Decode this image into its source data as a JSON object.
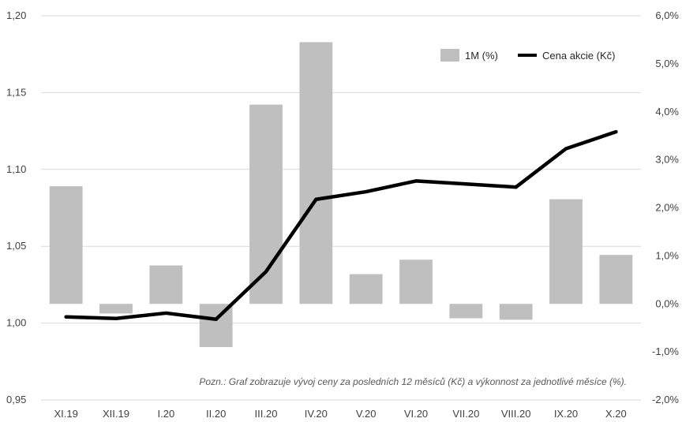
{
  "chart_data": {
    "type": "bar",
    "categories": [
      "XI.19",
      "XII.19",
      "I.20",
      "II.20",
      "III.20",
      "IV.20",
      "V.20",
      "VI.20",
      "VII.20",
      "VIII.20",
      "IX.20",
      "X.20"
    ],
    "series": [
      {
        "name": "1M (%)",
        "type": "bar",
        "axis": "right",
        "color": "#bfbfbf",
        "values": [
          2.45,
          -0.2,
          0.8,
          -0.9,
          4.15,
          5.45,
          0.62,
          0.92,
          -0.3,
          -0.33,
          2.18,
          1.02
        ]
      },
      {
        "name": "Cena akcie (Kč)",
        "type": "line",
        "axis": "left",
        "color": "#000000",
        "values": [
          1.004,
          1.003,
          1.0065,
          1.0025,
          1.0335,
          1.0805,
          1.0855,
          1.0925,
          1.0905,
          1.0885,
          1.1135,
          1.1245
        ]
      }
    ],
    "y_left": {
      "min": 0.95,
      "max": 1.2,
      "ticks": [
        "0,95",
        "1,00",
        "1,05",
        "1,10",
        "1,15",
        "1,20"
      ]
    },
    "y_right": {
      "min": -2,
      "max": 6,
      "ticks": [
        "-2,0%",
        "-1,0%",
        "0,0%",
        "1,0%",
        "2,0%",
        "3,0%",
        "4,0%",
        "5,0%",
        "6,0%"
      ]
    },
    "grid": true,
    "legend_position": "top-right",
    "note": "Pozn.: Graf zobrazuje vývoj ceny za posledních 12 měsíců (Kč) a výkonnost za jednotlivé měsíce (%)."
  }
}
